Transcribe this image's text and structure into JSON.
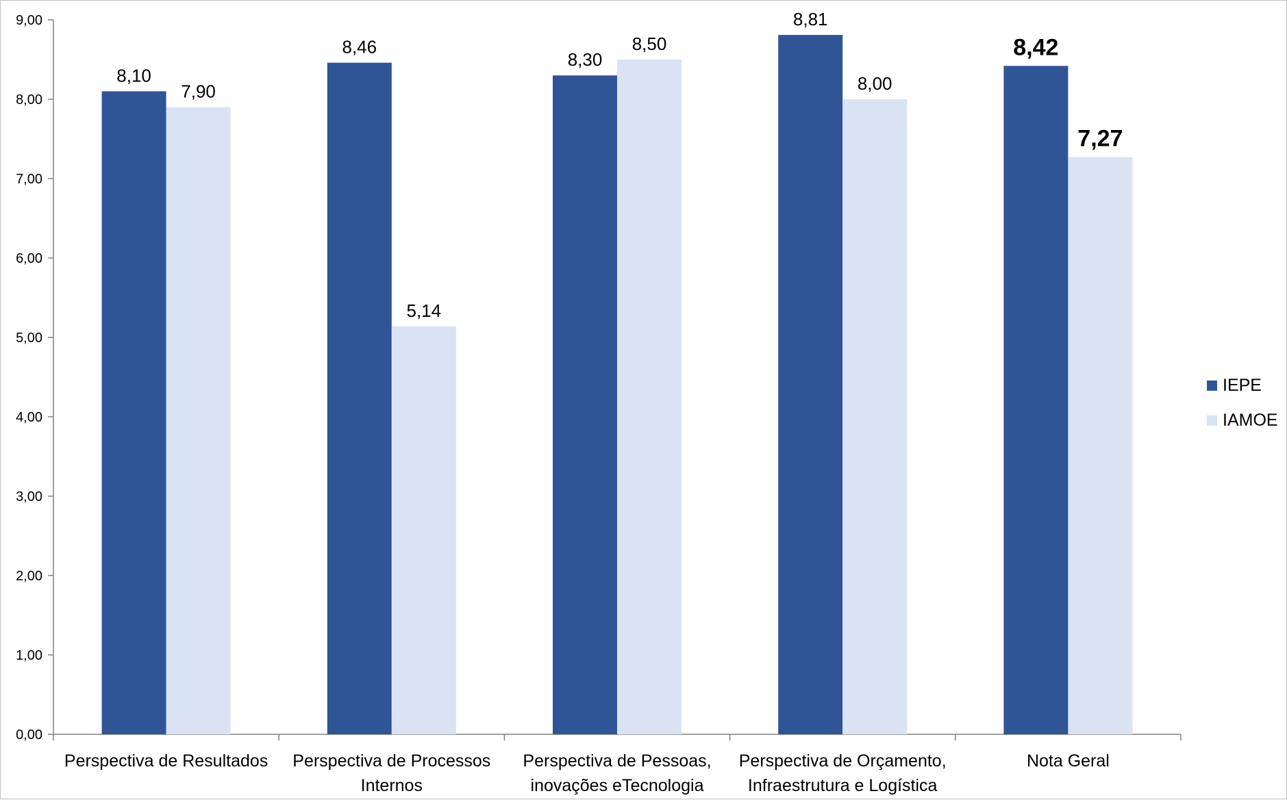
{
  "chart_data": {
    "type": "bar",
    "title": "",
    "xlabel": "",
    "ylabel": "",
    "ylim": [
      0,
      9
    ],
    "y_ticks": [
      "0,00",
      "1,00",
      "2,00",
      "3,00",
      "4,00",
      "5,00",
      "6,00",
      "7,00",
      "8,00",
      "9,00"
    ],
    "grid": false,
    "legend_position": "right",
    "categories": [
      [
        "Perspectiva de Resultados"
      ],
      [
        "Perspectiva de Processos",
        "Internos"
      ],
      [
        "Perspectiva de Pessoas,",
        "inovações eTecnologia"
      ],
      [
        "Perspectiva de  Orçamento,",
        "Infraestrutura e Logística"
      ],
      [
        "Nota Geral"
      ]
    ],
    "series": [
      {
        "name": "IEPE",
        "color": "#2F5597",
        "values": [
          8.1,
          8.46,
          8.3,
          8.81,
          8.42
        ],
        "labels": [
          "8,10",
          "8,46",
          "8,30",
          "8,81",
          "8,42"
        ]
      },
      {
        "name": "IAMOE",
        "color": "#DAE3F3",
        "values": [
          7.9,
          5.14,
          8.5,
          8.0,
          7.27
        ],
        "labels": [
          "7,90",
          "5,14",
          "8,50",
          "8,00",
          "7,27"
        ]
      }
    ],
    "highlight_category_index": 4,
    "highlight_label_color": "#375623"
  }
}
